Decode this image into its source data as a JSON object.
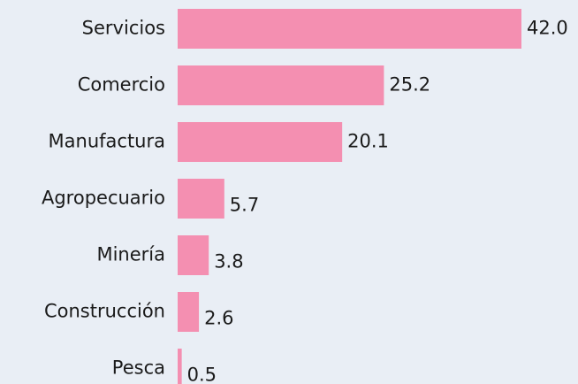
{
  "chart_data": {
    "type": "bar",
    "orientation": "horizontal",
    "categories": [
      "Servicios",
      "Comercio",
      "Manufactura",
      "Agropecuario",
      "Minería",
      "Construcción",
      "Pesca"
    ],
    "values": [
      42.0,
      25.2,
      20.1,
      5.7,
      3.8,
      2.6,
      0.5
    ],
    "value_labels": [
      "42.0",
      "25.2",
      "20.1",
      "5.7",
      "3.8",
      "2.6",
      "0.5"
    ],
    "color": "#f48fb1"
  }
}
